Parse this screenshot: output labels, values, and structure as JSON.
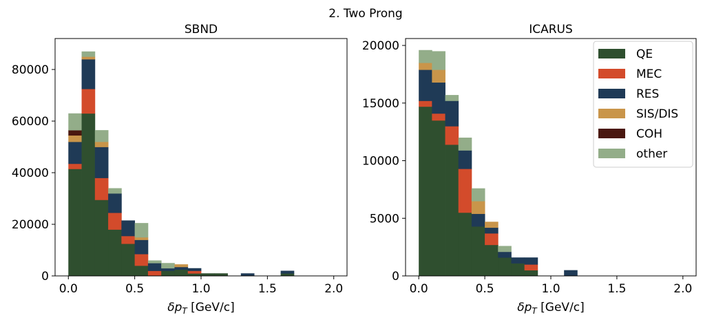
{
  "suptitle": "2. Two Prong",
  "colors": {
    "QE": "#2f4f2f",
    "MEC": "#d34b2b",
    "RES": "#1f3a56",
    "SIS/DIS": "#c9954a",
    "COH": "#4a1810",
    "other": "#93ad89"
  },
  "chart_data": [
    {
      "type": "bar",
      "stacked": true,
      "title": "SBND",
      "xlabel": "δp_T [GeV/c]",
      "xlabel_parts": {
        "delta": "δ",
        "p": "p",
        "sub": "T",
        "units": "[GeV/c]"
      },
      "ylabel": "",
      "xlim": [
        -0.1,
        2.1
      ],
      "ylim": [
        0,
        92000
      ],
      "xticks": [
        "0.0",
        "0.5",
        "1.0",
        "1.5",
        "2.0"
      ],
      "yticks": [
        "0",
        "20000",
        "40000",
        "60000",
        "80000"
      ],
      "bin_edges": [
        0.0,
        0.1,
        0.2,
        0.3,
        0.4,
        0.5,
        0.6,
        0.7,
        0.8,
        0.9,
        1.0,
        1.1,
        1.2,
        1.3,
        1.4,
        1.5,
        1.6,
        1.7,
        1.8,
        1.9,
        2.0
      ],
      "series": [
        {
          "name": "QE",
          "values": [
            41500,
            63000,
            29500,
            18000,
            12500,
            4000,
            0,
            2000,
            2500,
            1000,
            1000,
            1000,
            0,
            0,
            0,
            0,
            1000,
            0,
            0,
            0
          ]
        },
        {
          "name": "MEC",
          "values": [
            2000,
            9500,
            8500,
            6500,
            3000,
            4500,
            2000,
            0,
            0,
            1000,
            0,
            0,
            0,
            0,
            0,
            0,
            0,
            0,
            0,
            0
          ]
        },
        {
          "name": "RES",
          "values": [
            8500,
            11500,
            12000,
            7500,
            6000,
            5500,
            3000,
            1000,
            1000,
            1000,
            0,
            0,
            0,
            1000,
            0,
            0,
            1000,
            0,
            0,
            0
          ]
        },
        {
          "name": "SIS/DIS",
          "values": [
            2500,
            1000,
            2000,
            0,
            0,
            1000,
            0,
            0,
            1000,
            0,
            0,
            0,
            0,
            0,
            0,
            0,
            0,
            0,
            0,
            0
          ]
        },
        {
          "name": "COH",
          "values": [
            2000,
            0,
            0,
            0,
            0,
            0,
            0,
            0,
            0,
            0,
            0,
            0,
            0,
            0,
            0,
            0,
            0,
            0,
            0,
            0
          ]
        },
        {
          "name": "other",
          "values": [
            6500,
            2000,
            4500,
            2000,
            0,
            5500,
            1000,
            2000,
            0,
            0,
            0,
            0,
            0,
            0,
            0,
            0,
            0,
            0,
            0,
            0
          ]
        }
      ]
    },
    {
      "type": "bar",
      "stacked": true,
      "title": "ICARUS",
      "xlabel": "δp_T [GeV/c]",
      "xlabel_parts": {
        "delta": "δ",
        "p": "p",
        "sub": "T",
        "units": "[GeV/c]"
      },
      "ylabel": "",
      "xlim": [
        -0.1,
        2.1
      ],
      "ylim": [
        0,
        20600
      ],
      "xticks": [
        "0.0",
        "0.5",
        "1.0",
        "1.5",
        "2.0"
      ],
      "yticks": [
        "0",
        "5000",
        "10000",
        "15000",
        "20000"
      ],
      "bin_edges": [
        0.0,
        0.1,
        0.2,
        0.3,
        0.4,
        0.5,
        0.6,
        0.7,
        0.8,
        0.9,
        1.0,
        1.1,
        1.2,
        1.3,
        1.4,
        1.5,
        1.6,
        1.7,
        1.8,
        1.9,
        2.0
      ],
      "series": [
        {
          "name": "QE",
          "values": [
            14700,
            13500,
            11400,
            5500,
            4300,
            2700,
            1600,
            1100,
            500,
            0,
            0,
            0,
            0,
            0,
            0,
            0,
            0,
            0,
            0,
            0
          ]
        },
        {
          "name": "MEC",
          "values": [
            500,
            600,
            1600,
            3800,
            0,
            1000,
            0,
            0,
            500,
            0,
            0,
            0,
            0,
            0,
            0,
            0,
            0,
            0,
            0,
            0
          ]
        },
        {
          "name": "RES",
          "values": [
            2700,
            2700,
            2200,
            1600,
            1100,
            500,
            500,
            500,
            600,
            0,
            0,
            500,
            0,
            0,
            0,
            0,
            0,
            0,
            0,
            0
          ]
        },
        {
          "name": "SIS/DIS",
          "values": [
            600,
            1100,
            0,
            0,
            1100,
            500,
            0,
            0,
            0,
            0,
            0,
            0,
            0,
            0,
            0,
            0,
            0,
            0,
            0,
            0
          ]
        },
        {
          "name": "COH",
          "values": [
            0,
            0,
            0,
            0,
            0,
            0,
            0,
            0,
            0,
            0,
            0,
            0,
            0,
            0,
            0,
            0,
            0,
            0,
            0,
            0
          ]
        },
        {
          "name": "other",
          "values": [
            1100,
            1600,
            500,
            1100,
            1100,
            0,
            500,
            0,
            0,
            0,
            0,
            0,
            0,
            0,
            0,
            0,
            0,
            0,
            0,
            0
          ]
        }
      ],
      "legend": {
        "position": "top-right",
        "entries": [
          "QE",
          "MEC",
          "RES",
          "SIS/DIS",
          "COH",
          "other"
        ]
      }
    }
  ]
}
